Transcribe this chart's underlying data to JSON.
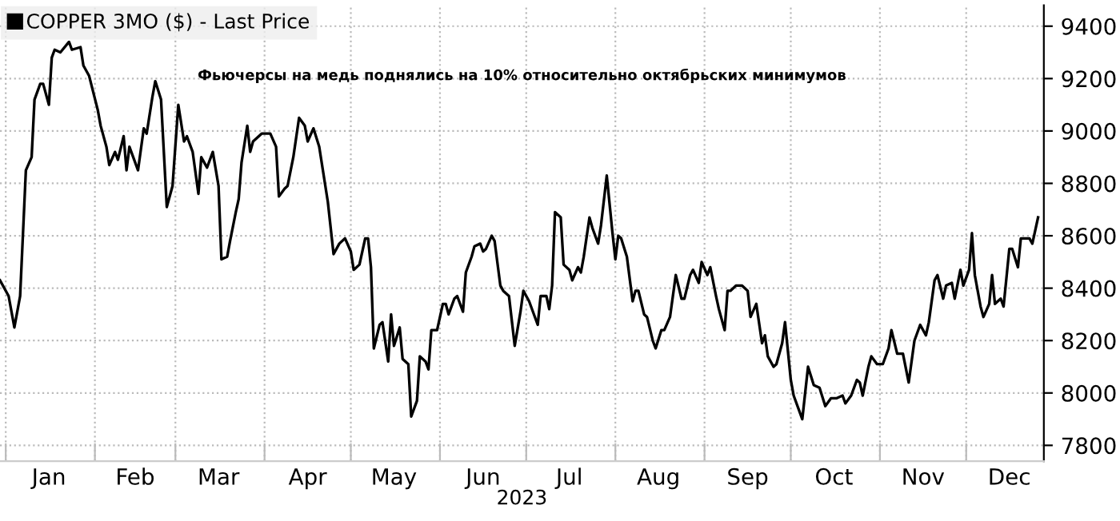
{
  "chart_data": {
    "type": "line",
    "xlabel": "2023",
    "annotations": [
      "Фьючерсы на медь поднялись на 10% относительно октябрьских минимумов"
    ],
    "x": [
      "2022-12-30",
      "2023-01-02",
      "2023-01-04",
      "2023-01-06",
      "2023-01-08",
      "2023-01-10",
      "2023-01-11",
      "2023-01-13",
      "2023-01-14",
      "2023-01-16",
      "2023-01-17",
      "2023-01-18",
      "2023-01-20",
      "2023-01-23",
      "2023-01-24",
      "2023-01-27",
      "2023-01-28",
      "2023-01-30",
      "2023-02-02",
      "2023-02-03",
      "2023-02-05",
      "2023-02-06",
      "2023-02-08",
      "2023-02-09",
      "2023-02-11",
      "2023-02-12",
      "2023-02-13",
      "2023-02-16",
      "2023-02-18",
      "2023-02-19",
      "2023-02-21",
      "2023-02-22",
      "2023-02-24",
      "2023-02-26",
      "2023-02-28",
      "2023-03-02",
      "2023-03-04",
      "2023-03-05",
      "2023-03-07",
      "2023-03-09",
      "2023-03-10",
      "2023-03-12",
      "2023-03-14",
      "2023-03-16",
      "2023-03-17",
      "2023-03-19",
      "2023-03-20",
      "2023-03-22",
      "2023-03-23",
      "2023-03-24",
      "2023-03-26",
      "2023-03-27",
      "2023-03-28",
      "2023-03-31",
      "2023-04-03",
      "2023-04-05",
      "2023-04-06",
      "2023-04-08",
      "2023-04-09",
      "2023-04-11",
      "2023-04-13",
      "2023-04-15",
      "2023-04-16",
      "2023-04-18",
      "2023-04-20",
      "2023-04-23",
      "2023-04-25",
      "2023-04-27",
      "2023-04-29",
      "2023-05-01",
      "2023-05-02",
      "2023-05-04",
      "2023-05-06",
      "2023-05-07",
      "2023-05-08",
      "2023-05-09",
      "2023-05-11",
      "2023-05-12",
      "2023-05-14",
      "2023-05-15",
      "2023-05-16",
      "2023-05-18",
      "2023-05-19",
      "2023-05-21",
      "2023-05-22",
      "2023-05-24",
      "2023-05-25",
      "2023-05-27",
      "2023-05-28",
      "2023-05-29",
      "2023-05-31",
      "2023-06-02",
      "2023-06-03",
      "2023-06-04",
      "2023-06-06",
      "2023-06-07",
      "2023-06-09",
      "2023-06-10",
      "2023-06-12",
      "2023-06-13",
      "2023-06-15",
      "2023-06-16",
      "2023-06-17",
      "2023-06-19",
      "2023-06-20",
      "2023-06-22",
      "2023-06-23",
      "2023-06-25",
      "2023-06-27",
      "2023-06-29",
      "2023-06-30",
      "2023-07-02",
      "2023-07-05",
      "2023-07-06",
      "2023-07-08",
      "2023-07-09",
      "2023-07-10",
      "2023-07-11",
      "2023-07-13",
      "2023-07-14",
      "2023-07-16",
      "2023-07-17",
      "2023-07-19",
      "2023-07-20",
      "2023-07-21",
      "2023-07-23",
      "2023-07-24",
      "2023-07-26",
      "2023-07-27",
      "2023-07-29",
      "2023-07-31",
      "2023-08-01",
      "2023-08-02",
      "2023-08-03",
      "2023-08-05",
      "2023-08-07",
      "2023-08-08",
      "2023-08-09",
      "2023-08-11",
      "2023-08-12",
      "2023-08-14",
      "2023-08-15",
      "2023-08-17",
      "2023-08-18",
      "2023-08-20",
      "2023-08-22",
      "2023-08-24",
      "2023-08-25",
      "2023-08-27",
      "2023-08-28",
      "2023-08-30",
      "2023-08-31",
      "2023-09-02",
      "2023-09-03",
      "2023-09-05",
      "2023-09-06",
      "2023-09-08",
      "2023-09-09",
      "2023-09-10",
      "2023-09-12",
      "2023-09-14",
      "2023-09-16",
      "2023-09-17",
      "2023-09-19",
      "2023-09-21",
      "2023-09-22",
      "2023-09-23",
      "2023-09-25",
      "2023-09-26",
      "2023-09-28",
      "2023-09-29",
      "2023-10-01",
      "2023-10-02",
      "2023-10-05",
      "2023-10-06",
      "2023-10-07",
      "2023-10-09",
      "2023-10-11",
      "2023-10-13",
      "2023-10-15",
      "2023-10-17",
      "2023-10-19",
      "2023-10-20",
      "2023-10-22",
      "2023-10-24",
      "2023-10-25",
      "2023-10-26",
      "2023-10-28",
      "2023-10-29",
      "2023-10-31",
      "2023-11-02",
      "2023-11-04",
      "2023-11-05",
      "2023-11-07",
      "2023-11-09",
      "2023-11-11",
      "2023-11-13",
      "2023-11-15",
      "2023-11-17",
      "2023-11-18",
      "2023-11-20",
      "2023-11-21",
      "2023-11-23",
      "2023-11-24",
      "2023-11-26",
      "2023-11-27",
      "2023-11-29",
      "2023-11-30",
      "2023-12-02",
      "2023-12-03",
      "2023-12-04",
      "2023-12-06",
      "2023-12-07",
      "2023-12-09",
      "2023-12-10",
      "2023-12-11",
      "2023-12-13",
      "2023-12-14",
      "2023-12-16",
      "2023-12-17",
      "2023-12-19",
      "2023-12-20",
      "2023-12-21",
      "2023-12-23",
      "2023-12-24",
      "2023-12-26"
    ],
    "series": [
      {
        "name": "COPPER 3MO ($) - Last Price",
        "color": "#000000",
        "values": [
          8430,
          8370,
          8250,
          8370,
          8850,
          8900,
          9120,
          9180,
          9180,
          9100,
          9280,
          9310,
          9300,
          9340,
          9310,
          9320,
          9250,
          9210,
          9080,
          9020,
          8940,
          8870,
          8920,
          8890,
          8980,
          8850,
          8940,
          8850,
          9010,
          8990,
          9130,
          9190,
          9120,
          8710,
          8790,
          9100,
          8960,
          8980,
          8920,
          8760,
          8900,
          8860,
          8920,
          8790,
          8510,
          8520,
          8580,
          8690,
          8740,
          8880,
          9020,
          8920,
          8960,
          8990,
          8990,
          8940,
          8750,
          8780,
          8790,
          8900,
          9050,
          9020,
          8960,
          9010,
          8940,
          8730,
          8530,
          8570,
          8590,
          8540,
          8470,
          8490,
          8590,
          8590,
          8480,
          8170,
          8260,
          8270,
          8120,
          8300,
          8180,
          8250,
          8130,
          8110,
          7910,
          7970,
          8140,
          8120,
          8090,
          8240,
          8240,
          8340,
          8340,
          8300,
          8360,
          8370,
          8310,
          8460,
          8520,
          8560,
          8570,
          8540,
          8550,
          8600,
          8580,
          8410,
          8390,
          8370,
          8180,
          8310,
          8390,
          8350,
          8260,
          8370,
          8370,
          8320,
          8410,
          8690,
          8670,
          8490,
          8470,
          8430,
          8480,
          8460,
          8520,
          8670,
          8630,
          8570,
          8640,
          8830,
          8610,
          8510,
          8600,
          8590,
          8520,
          8350,
          8390,
          8390,
          8300,
          8290,
          8200,
          8170,
          8240,
          8240,
          8290,
          8450,
          8360,
          8360,
          8450,
          8470,
          8420,
          8500,
          8450,
          8480,
          8370,
          8320,
          8240,
          8390,
          8390,
          8410,
          8410,
          8390,
          8290,
          8340,
          8190,
          8220,
          8140,
          8100,
          8110,
          8190,
          8270,
          8050,
          7990,
          7900,
          8000,
          8100,
          8030,
          8020,
          7950,
          7980,
          7980,
          7990,
          7960,
          7990,
          8050,
          8040,
          7990,
          8100,
          8140,
          8110,
          8110,
          8170,
          8240,
          8150,
          8150,
          8040,
          8200,
          8260,
          8220,
          8270,
          8430,
          8450,
          8360,
          8410,
          8420,
          8360,
          8470,
          8410,
          8470,
          8610,
          8450,
          8330,
          8290,
          8340,
          8450,
          8340,
          8360,
          8330,
          8550,
          8550,
          8480,
          8590,
          8590,
          8590,
          8570,
          8670
        ]
      }
    ],
    "xlim": [
      "2022-12-30",
      "2023-12-28"
    ],
    "xticks": [
      {
        "value": "2023-01-01",
        "label": null
      },
      {
        "value": "2023-01-16",
        "label": "Jan"
      },
      {
        "value": "2023-02-01",
        "label": null
      },
      {
        "value": "2023-02-15",
        "label": "Feb"
      },
      {
        "value": "2023-03-01",
        "label": null
      },
      {
        "value": "2023-03-16",
        "label": "Mar"
      },
      {
        "value": "2023-04-01",
        "label": null
      },
      {
        "value": "2023-04-16",
        "label": "Apr"
      },
      {
        "value": "2023-05-01",
        "label": null
      },
      {
        "value": "2023-05-16",
        "label": "May"
      },
      {
        "value": "2023-06-01",
        "label": null
      },
      {
        "value": "2023-06-16",
        "label": "Jun"
      },
      {
        "value": "2023-07-01",
        "label": null
      },
      {
        "value": "2023-07-16",
        "label": "Jul"
      },
      {
        "value": "2023-08-01",
        "label": null
      },
      {
        "value": "2023-08-16",
        "label": "Aug"
      },
      {
        "value": "2023-09-01",
        "label": null
      },
      {
        "value": "2023-09-16",
        "label": "Sep"
      },
      {
        "value": "2023-10-01",
        "label": null
      },
      {
        "value": "2023-10-16",
        "label": "Oct"
      },
      {
        "value": "2023-11-01",
        "label": null
      },
      {
        "value": "2023-11-16",
        "label": "Nov"
      },
      {
        "value": "2023-12-01",
        "label": null
      },
      {
        "value": "2023-12-16",
        "label": "Dec"
      }
    ],
    "ylim": [
      7740,
      9480
    ],
    "yticks": [
      7800,
      8000,
      8200,
      8400,
      8600,
      8800,
      9000,
      9200,
      9400
    ],
    "grid": true,
    "legend": "top left",
    "marker": "none",
    "line_style": "solid"
  }
}
